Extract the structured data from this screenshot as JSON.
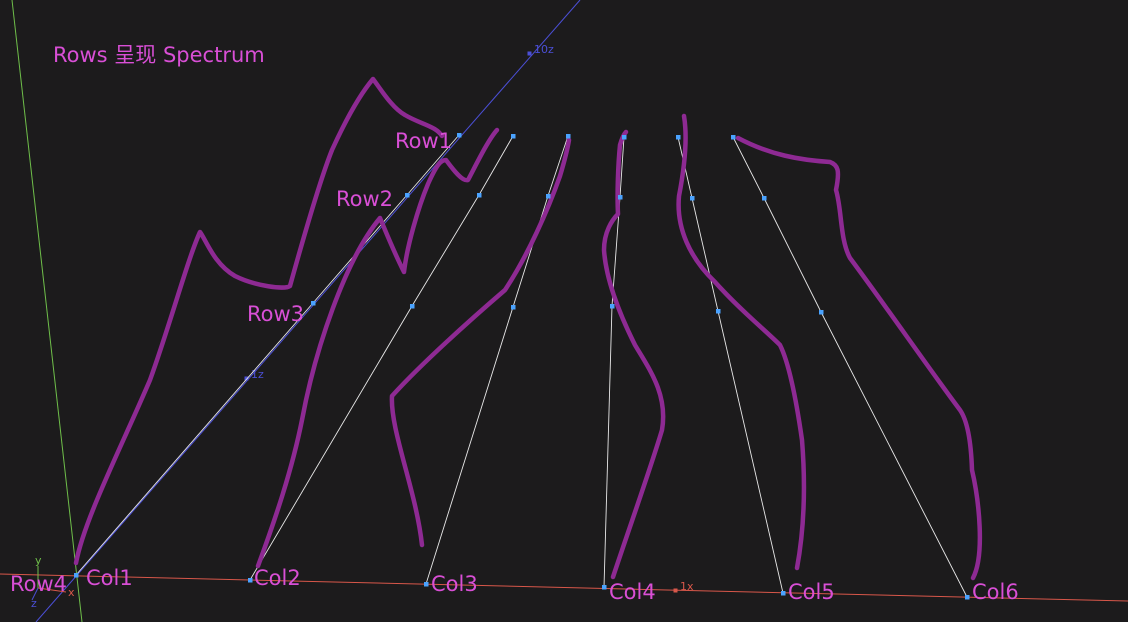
{
  "title": "Rows 呈现 Spectrum",
  "rows": [
    "Row1",
    "Row2",
    "Row3",
    "Row4"
  ],
  "columns": [
    "Col1",
    "Col2",
    "Col3",
    "Col4",
    "Col5",
    "Col6"
  ],
  "axis_markers": {
    "z_far": "10z",
    "z_near": "1z",
    "x_unit": "1x",
    "y_axis": "y",
    "x_axis": "x",
    "z_axis": "z"
  },
  "colors": {
    "background": "#1c1b1c",
    "label": "#d94fd6",
    "curve": "#8e2a93",
    "grid_line": "#e8e8e8",
    "node": "#4aa3ff",
    "x_axis": "#d8574a",
    "y_axis": "#6fbf4a",
    "z_axis": "#4b4fd6"
  }
}
